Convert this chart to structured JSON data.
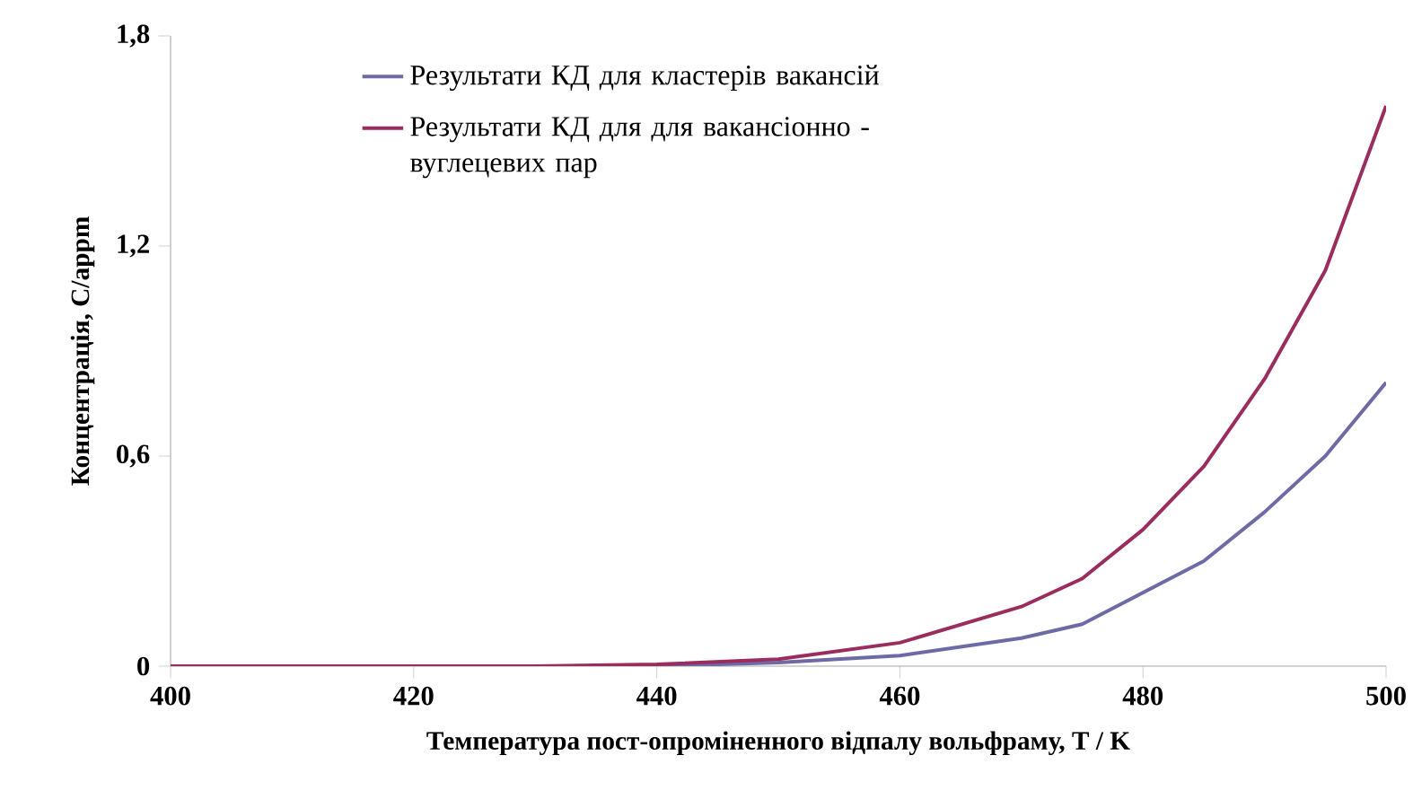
{
  "chart_data": {
    "type": "line",
    "xlabel": "Температура пост-опроміненного відпалу вольфраму, T / K",
    "ylabel": "Концентрація,  C/appm",
    "xlim": [
      400,
      500
    ],
    "xticks": [
      400,
      420,
      440,
      460,
      480,
      500
    ],
    "ylim": [
      0,
      1.8
    ],
    "yticks": [
      0,
      {
        "value": 0.6,
        "label": "0,6"
      },
      {
        "value": 1.2,
        "label": "1,2"
      },
      {
        "value": 1.8,
        "label": "1,8"
      }
    ],
    "grid": false,
    "legend": "top left",
    "marker": "none",
    "line_style": "solid",
    "series": [
      {
        "name": "Результати КД для кластерів вакансій",
        "color": "#6e6aa6",
        "x": [
          400,
          440,
          450,
          460,
          470,
          475,
          480,
          485,
          490,
          495,
          500
        ],
        "values": [
          0,
          0,
          0.01,
          0.03,
          0.08,
          0.12,
          0.21,
          0.3,
          0.44,
          0.6,
          0.81
        ]
      },
      {
        "name": "Результати КД для  для вакансіонно - вуглецевих пар",
        "color": "#9b2d5e",
        "x": [
          400,
          430,
          440,
          450,
          460,
          470,
          475,
          480,
          485,
          490,
          495,
          500
        ],
        "values": [
          0,
          0,
          0.005,
          0.02,
          0.067,
          0.17,
          0.25,
          0.39,
          0.57,
          0.82,
          1.13,
          1.6
        ]
      }
    ]
  }
}
